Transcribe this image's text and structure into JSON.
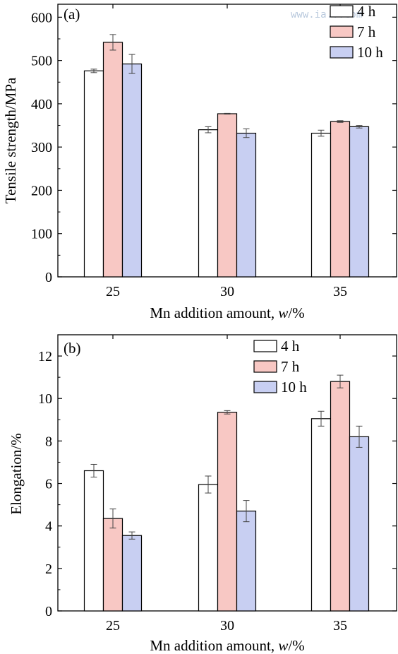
{
  "colors": {
    "4 h": "#ffffff",
    "7 h": "#f8c8c4",
    "10 h": "#c8cff2",
    "stroke": "#000000",
    "errorbar": "#444444"
  },
  "watermark": "www.ia...com",
  "chart_data": [
    {
      "type": "bar",
      "panel_label": "(a)",
      "categories": [
        "25",
        "30",
        "35"
      ],
      "series": [
        {
          "name": "4 h",
          "values": [
            476,
            340,
            332
          ],
          "errors": [
            4,
            7,
            7
          ]
        },
        {
          "name": "7 h",
          "values": [
            542,
            377,
            359
          ],
          "errors": [
            18,
            1,
            2
          ]
        },
        {
          "name": "10 h",
          "values": [
            492,
            332,
            347
          ],
          "errors": [
            22,
            10,
            3
          ]
        }
      ],
      "xlabel": "Mn addition amount, w/%",
      "xlabel_main": "Mn addition amount, ",
      "xlabel_var": "w",
      "xlabel_unit": "/%",
      "ylabel": "Tensile strength/MPa",
      "ylim": [
        0,
        630
      ],
      "yticks": [
        "0",
        "100",
        "200",
        "300",
        "400",
        "500",
        "600"
      ],
      "legend_position": "top-right",
      "grid": false
    },
    {
      "type": "bar",
      "panel_label": "(b)",
      "categories": [
        "25",
        "30",
        "35"
      ],
      "series": [
        {
          "name": "4 h",
          "values": [
            6.6,
            5.95,
            9.05
          ],
          "errors": [
            0.3,
            0.4,
            0.35
          ]
        },
        {
          "name": "7 h",
          "values": [
            4.35,
            9.35,
            10.8
          ],
          "errors": [
            0.45,
            0.08,
            0.3
          ]
        },
        {
          "name": "10 h",
          "values": [
            3.55,
            4.7,
            8.2
          ],
          "errors": [
            0.17,
            0.5,
            0.5
          ]
        }
      ],
      "xlabel": "Mn addition amount, w/%",
      "xlabel_main": "Mn addition amount, ",
      "xlabel_var": "w",
      "xlabel_unit": "/%",
      "ylabel": "Elongation/%",
      "ylim": [
        0,
        13
      ],
      "yticks": [
        "0",
        "2",
        "4",
        "6",
        "8",
        "10",
        "12"
      ],
      "legend_position": "top-right",
      "grid": false
    }
  ]
}
